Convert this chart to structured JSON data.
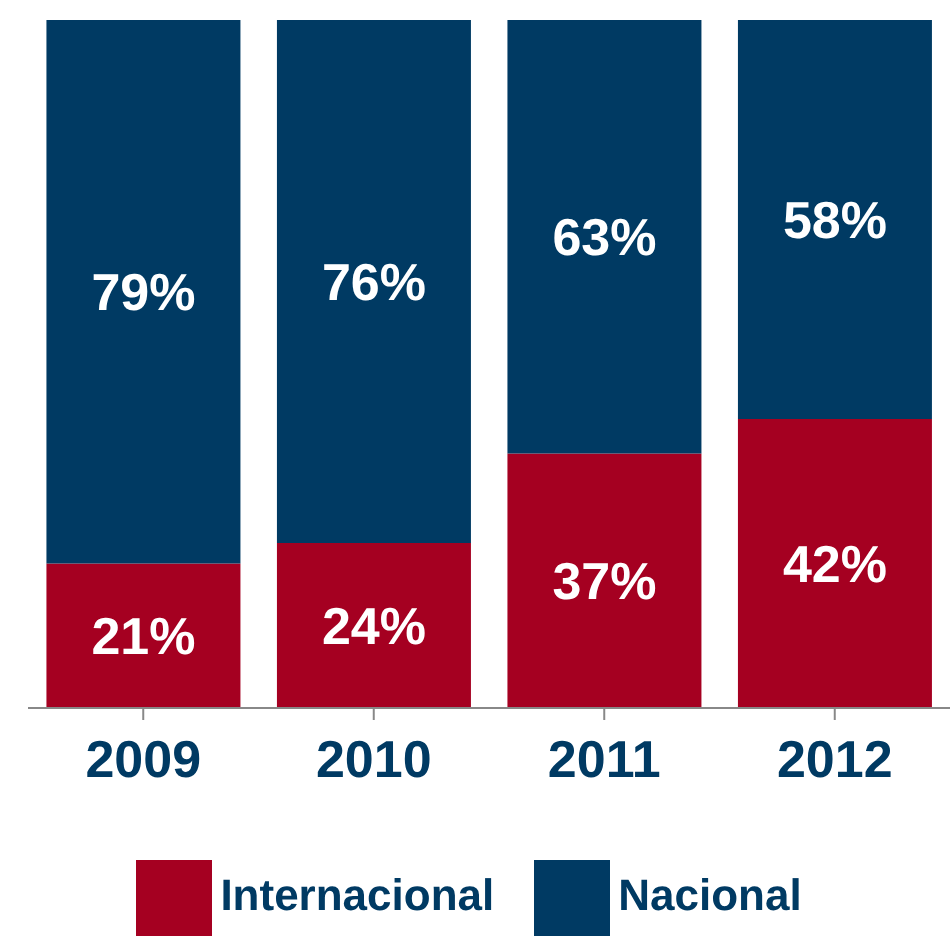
{
  "chart_data": {
    "type": "bar",
    "stacked": true,
    "categories": [
      "2009",
      "2010",
      "2011",
      "2012"
    ],
    "series": [
      {
        "name": "Internacional",
        "color": "#a50021",
        "values": [
          21,
          24,
          37,
          42
        ],
        "value_labels": [
          "21%",
          "24%",
          "37%",
          "42%"
        ]
      },
      {
        "name": "Nacional",
        "color": "#003a63",
        "values": [
          79,
          76,
          63,
          58
        ],
        "value_labels": [
          "79%",
          "76%",
          "63%",
          "58%"
        ]
      }
    ],
    "legend": "bottom",
    "tick_labels": "x"
  }
}
